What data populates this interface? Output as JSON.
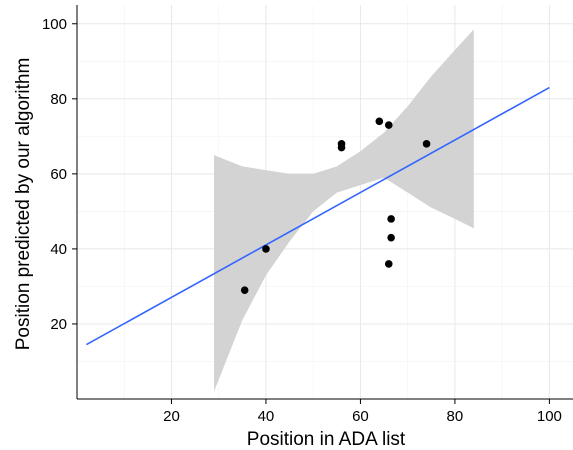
{
  "chart_data": {
    "type": "scatter",
    "title": "",
    "xlabel": "Position in ADA list",
    "ylabel": "Position predicted by our algorithm",
    "xlim": [
      0,
      105
    ],
    "ylim": [
      0,
      105
    ],
    "x_ticks": [
      20,
      40,
      60,
      80,
      100
    ],
    "y_ticks": [
      20,
      40,
      60,
      80,
      100
    ],
    "grid": true,
    "points": [
      {
        "x": 35.5,
        "y": 29
      },
      {
        "x": 40,
        "y": 40
      },
      {
        "x": 56,
        "y": 67
      },
      {
        "x": 56,
        "y": 68
      },
      {
        "x": 64,
        "y": 74
      },
      {
        "x": 66,
        "y": 73
      },
      {
        "x": 74,
        "y": 68
      },
      {
        "x": 66.5,
        "y": 48
      },
      {
        "x": 66.5,
        "y": 43
      },
      {
        "x": 66,
        "y": 36
      }
    ],
    "regression_line": {
      "x": [
        2,
        100
      ],
      "y": [
        14.5,
        83
      ]
    },
    "confidence_band": {
      "x": [
        29,
        35,
        40,
        45,
        50,
        55,
        60,
        65,
        70,
        75,
        80,
        84
      ],
      "lower": [
        2,
        21,
        33,
        42,
        50,
        55,
        57,
        59,
        55,
        51,
        48,
        45.5
      ],
      "upper": [
        65,
        62,
        61,
        60,
        60,
        62,
        66,
        71,
        78,
        86,
        93,
        98.5
      ]
    },
    "colors": {
      "line": "#3366ff",
      "band": "#d3d3d3",
      "points": "#000000"
    }
  }
}
